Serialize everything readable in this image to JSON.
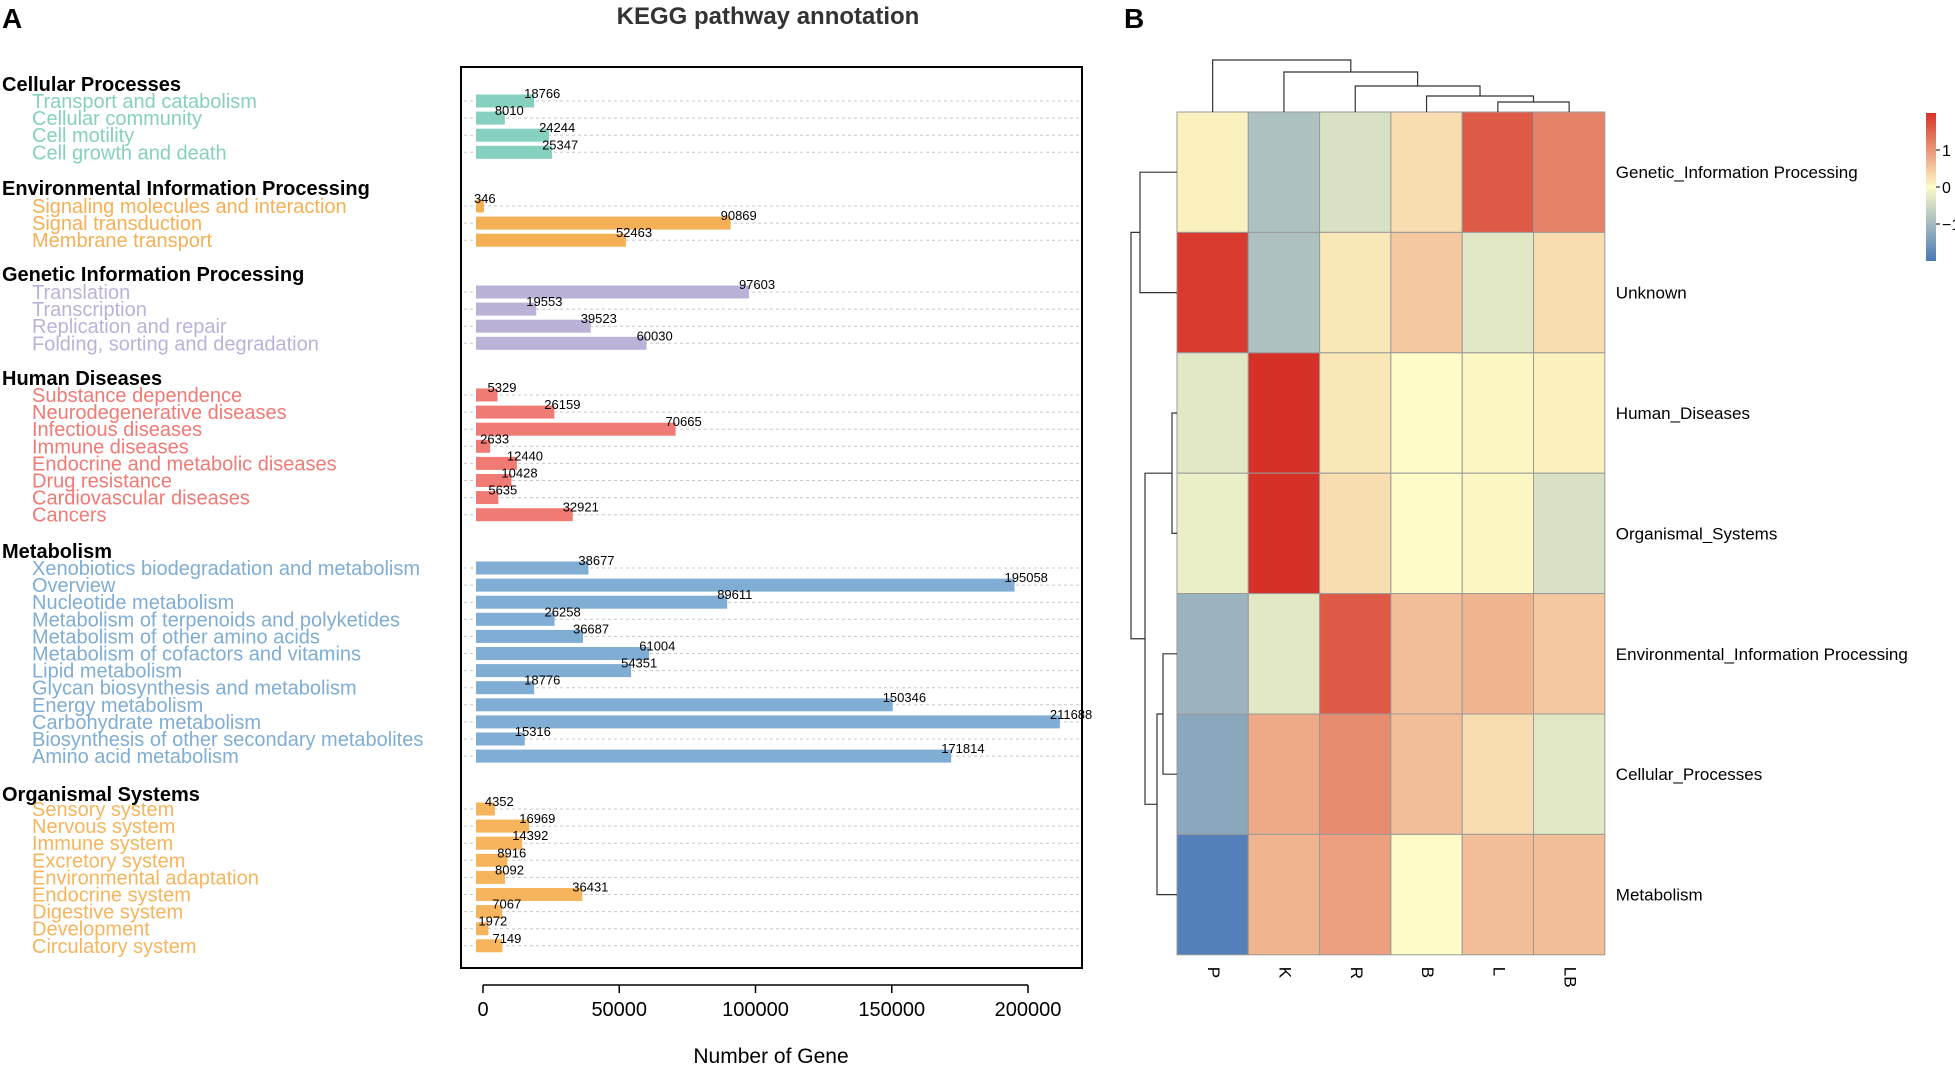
{
  "panel_labels": {
    "a": "A",
    "b": "B"
  },
  "colors": {
    "Cellular Processes": "#86d0bf",
    "Environmental Information Processing": "#f5b055",
    "Genetic Information Processing": "#bcb2d8",
    "Human Diseases": "#f07a74",
    "Metabolism": "#7fadd3",
    "Organismal Systems": "#f6b55d",
    "header": "#000000",
    "grid": "#c8c8c8",
    "heat_low": "#4a79b8",
    "heat_mid": "#fdfbc7",
    "heat_high": "#d73127"
  },
  "chart_data": [
    {
      "type": "bar",
      "orientation": "horizontal",
      "title": "KEGG pathway annotation",
      "xlabel": "Number of Gene",
      "ylabel": "",
      "xlim": [
        -5000,
        220000
      ],
      "xticks": [
        0,
        50000,
        100000,
        150000,
        200000
      ],
      "groups": [
        {
          "name": "Cellular Processes",
          "categories": [
            {
              "label": "Transport and catabolism",
              "value": 18766
            },
            {
              "label": "Cellular community",
              "value": 8010
            },
            {
              "label": "Cell motility",
              "value": 24244
            },
            {
              "label": "Cell growth and death",
              "value": 25347
            }
          ]
        },
        {
          "name": "Environmental Information Processing",
          "categories": [
            {
              "label": "Signaling molecules and interaction",
              "value": 346
            },
            {
              "label": "Signal transduction",
              "value": 90869
            },
            {
              "label": "Membrane transport",
              "value": 52463
            }
          ]
        },
        {
          "name": "Genetic Information Processing",
          "categories": [
            {
              "label": "Translation",
              "value": 97603
            },
            {
              "label": "Transcription",
              "value": 19553
            },
            {
              "label": "Replication and repair",
              "value": 39523
            },
            {
              "label": "Folding, sorting and degradation",
              "value": 60030
            }
          ]
        },
        {
          "name": "Human Diseases",
          "categories": [
            {
              "label": "Substance dependence",
              "value": 5329
            },
            {
              "label": "Neurodegenerative diseases",
              "value": 26159
            },
            {
              "label": "Infectious diseases",
              "value": 70665
            },
            {
              "label": "Immune diseases",
              "value": 2633
            },
            {
              "label": "Endocrine and metabolic diseases",
              "value": 12440
            },
            {
              "label": "Drug resistance",
              "value": 10428
            },
            {
              "label": "Cardiovascular diseases",
              "value": 5635
            },
            {
              "label": "Cancers",
              "value": 32921
            }
          ]
        },
        {
          "name": "Metabolism",
          "categories": [
            {
              "label": "Xenobiotics biodegradation and metabolism",
              "value": 38677
            },
            {
              "label": "Overview",
              "value": 195058
            },
            {
              "label": "Nucleotide metabolism",
              "value": 89611
            },
            {
              "label": "Metabolism of terpenoids and polyketides",
              "value": 26258
            },
            {
              "label": "Metabolism of other amino acids",
              "value": 36687
            },
            {
              "label": "Metabolism of cofactors and vitamins",
              "value": 61004
            },
            {
              "label": "Lipid metabolism",
              "value": 54351
            },
            {
              "label": "Glycan biosynthesis and metabolism",
              "value": 18776
            },
            {
              "label": "Energy metabolism",
              "value": 150346
            },
            {
              "label": "Carbohydrate metabolism",
              "value": 211688
            },
            {
              "label": "Biosynthesis of other secondary metabolites",
              "value": 15316
            },
            {
              "label": "Amino acid metabolism",
              "value": 171814
            }
          ]
        },
        {
          "name": "Organismal Systems",
          "categories": [
            {
              "label": "Sensory system",
              "value": 4352
            },
            {
              "label": "Nervous system",
              "value": 16969
            },
            {
              "label": "Immune system",
              "value": 14392
            },
            {
              "label": "Excretory system",
              "value": 8916
            },
            {
              "label": "Environmental adaptation",
              "value": 8092
            },
            {
              "label": "Endocrine system",
              "value": 36431
            },
            {
              "label": "Digestive system",
              "value": 7067
            },
            {
              "label": "Development",
              "value": 1972
            },
            {
              "label": "Circulatory system",
              "value": 7149
            }
          ]
        }
      ]
    },
    {
      "type": "heatmap",
      "title": "",
      "columns": [
        "P",
        "K",
        "R",
        "B",
        "L",
        "LB"
      ],
      "rows": [
        "Genetic_Information Processing",
        "Unknown",
        "Human_Diseases",
        "Organismal_Systems",
        "Environmental_Information Processing",
        "Cellular_Processes",
        "Metabolism"
      ],
      "values": [
        [
          0.1,
          -0.9,
          -0.4,
          0.3,
          1.6,
          1.2
        ],
        [
          1.9,
          -0.9,
          0.2,
          0.5,
          -0.3,
          0.3
        ],
        [
          -0.3,
          2.0,
          0.2,
          0.0,
          0.05,
          0.1
        ],
        [
          -0.2,
          2.0,
          0.3,
          0.0,
          0.05,
          -0.4
        ],
        [
          -1.1,
          -0.3,
          1.6,
          0.6,
          0.7,
          0.5
        ],
        [
          -1.3,
          0.8,
          1.1,
          0.6,
          0.3,
          -0.3
        ],
        [
          -1.9,
          0.7,
          0.9,
          0.0,
          0.6,
          0.6
        ]
      ],
      "legend": {
        "ticks": [
          1,
          0,
          -1
        ],
        "tick_labels": [
          "1",
          "0",
          "−1"
        ],
        "range": [
          -2,
          2
        ]
      },
      "row_dendrogram": "((((Environmental_Information Processing,Cellular_Processes),Metabolism),(Human_Diseases,Organismal_Systems)),(Genetic_Information Processing,Unknown))",
      "column_dendrogram": "(P,(K,(R,(B,(L,LB)))))"
    }
  ]
}
